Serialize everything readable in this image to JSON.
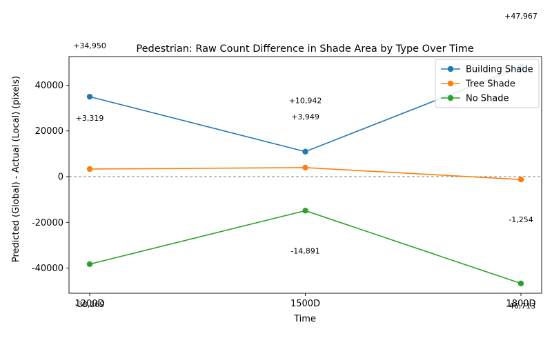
{
  "chart_data": {
    "type": "line",
    "title": "Pedestrian: Raw Count Difference in Shade Area by Type Over Time",
    "xlabel": "Time",
    "ylabel": "Predicted (Global) - Actual (Local) (pixels)",
    "categories": [
      "1200D",
      "1500D",
      "1800D"
    ],
    "ylim": [
      -51000,
      52500
    ],
    "yticks": [
      -40000,
      -20000,
      0,
      20000,
      40000
    ],
    "grid": false,
    "zero_line": true,
    "legend_position": "upper right",
    "series": [
      {
        "name": "Building Shade",
        "color": "#1f77b4",
        "values": [
          34950,
          10942,
          47967
        ],
        "labels": [
          "+34,950",
          "+10,942",
          "+47,967"
        ]
      },
      {
        "name": "Tree Shade",
        "color": "#ff7f0e",
        "values": [
          3319,
          3949,
          -1254
        ],
        "labels": [
          "+3,319",
          "+3,949",
          "-1,254"
        ]
      },
      {
        "name": "No Shade",
        "color": "#2ca02c",
        "values": [
          -38269,
          -14891,
          -46713
        ],
        "labels": [
          "-38,269",
          "-14,891",
          "-46,713"
        ]
      }
    ]
  }
}
